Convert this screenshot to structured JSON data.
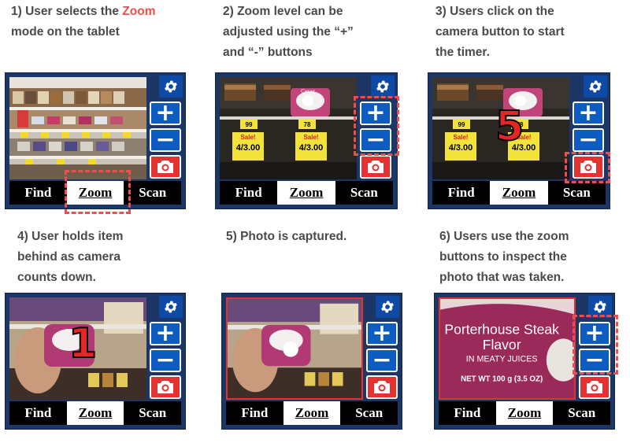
{
  "steps": [
    {
      "pre": "1) User selects the ",
      "highlight": "Zoom",
      "post": "\nmode on the tablet"
    },
    {
      "text": "2) Zoom level can be\nadjusted using the “+”\nand “-” buttons"
    },
    {
      "text": "3) Users click on the\ncamera button to start\nthe timer."
    },
    {
      "text": "4) User holds item\nbehind as camera\ncounts down."
    },
    {
      "text": "5) Photo is captured."
    },
    {
      "text": "6) Users use the zoom\nbuttons to inspect the\nphoto that was taken."
    }
  ],
  "tabs": {
    "find": "Find",
    "zoom": "Zoom",
    "scan": "Scan"
  },
  "buttons": {
    "plus": "+",
    "minus": "−",
    "settings_icon": "gear-icon",
    "camera_icon": "camera-icon"
  },
  "countdown": {
    "step3": "5",
    "step5": "1"
  },
  "price_tags": {
    "price1": "99",
    "price2": "78",
    "sale": "Sale!",
    "deal": "4/3.00"
  },
  "product_label": {
    "brand": "Cesar",
    "line1": "Porterhouse Steak",
    "line2": "Flavor",
    "line3": "IN MEATY JUICES",
    "line4": "NET WT 100 g (3.5 OZ)"
  },
  "colors": {
    "accent": "#f04e4e",
    "panel": "#1c3766",
    "button_blue": "#0d5cc2",
    "camera_red": "#e33232"
  }
}
